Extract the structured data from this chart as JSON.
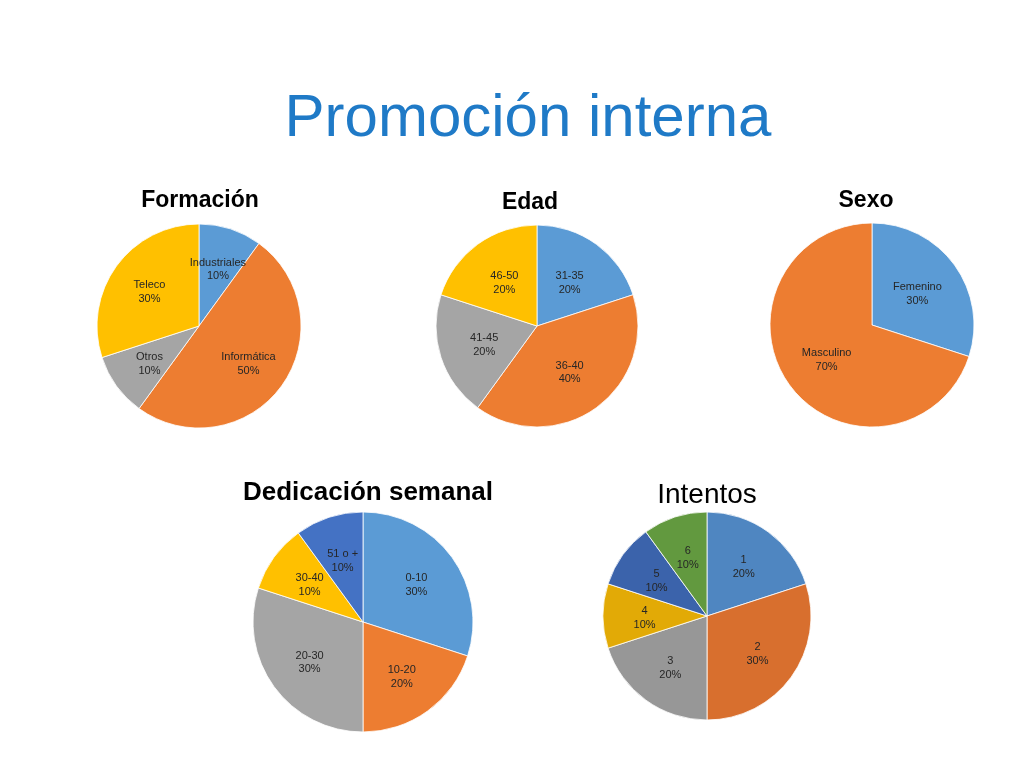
{
  "chart_data": [
    {
      "type": "other",
      "title": "Promoción interna"
    },
    {
      "type": "pie",
      "title": "Formación",
      "categories": [
        "Industriales",
        "Informática",
        "Otros",
        "Teleco"
      ],
      "values": [
        10,
        50,
        10,
        30
      ],
      "value_labels": [
        "10%",
        "50%",
        "10%",
        "30%"
      ],
      "colors": [
        "#5b9bd5",
        "#ed7d31",
        "#a5a5a5",
        "#ffc000"
      ]
    },
    {
      "type": "pie",
      "title": "Edad",
      "categories": [
        "31-35",
        "36-40",
        "41-45",
        "46-50"
      ],
      "values": [
        20,
        40,
        20,
        20
      ],
      "value_labels": [
        "20%",
        "40%",
        "20%",
        "20%"
      ],
      "colors": [
        "#5b9bd5",
        "#ed7d31",
        "#a5a5a5",
        "#ffc000"
      ]
    },
    {
      "type": "pie",
      "title": "Sexo",
      "categories": [
        "Femenino",
        "Masculino"
      ],
      "values": [
        30,
        70
      ],
      "value_labels": [
        "30%",
        "70%"
      ],
      "colors": [
        "#5b9bd5",
        "#ed7d31"
      ]
    },
    {
      "type": "pie",
      "title": "Dedicación semanal",
      "categories": [
        "0-10",
        "10-20",
        "20-30",
        "30-40",
        "51 o +"
      ],
      "values": [
        30,
        20,
        30,
        10,
        10
      ],
      "value_labels": [
        "30%",
        "20%",
        "30%",
        "10%",
        "10%"
      ],
      "colors": [
        "#5b9bd5",
        "#ed7d31",
        "#a5a5a5",
        "#ffc000",
        "#4472c4"
      ]
    },
    {
      "type": "pie",
      "title": "Intentos",
      "categories": [
        "1",
        "2",
        "3",
        "4",
        "5",
        "6"
      ],
      "values": [
        20,
        30,
        20,
        10,
        10,
        10
      ],
      "value_labels": [
        "20%",
        "30%",
        "20%",
        "10%",
        "10%",
        "10%"
      ],
      "colors": [
        "#4f86c1",
        "#d86f2e",
        "#979797",
        "#e2aa06",
        "#3b63ab",
        "#62993f"
      ]
    }
  ]
}
